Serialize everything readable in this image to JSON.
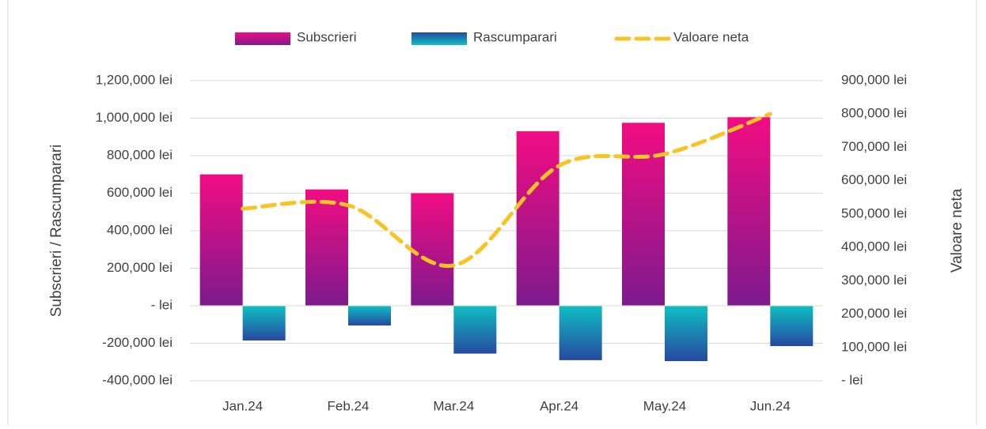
{
  "chart_data": {
    "type": "bar-line",
    "categories": [
      "Jan.24",
      "Feb.24",
      "Mar.24",
      "Apr.24",
      "May.24",
      "Jun.24"
    ],
    "y_label": "Subscrieri / Rascumparari",
    "y2_label": "Valoare neta",
    "ylim": [
      -400000,
      1200000
    ],
    "yticks": [
      {
        "value": -400000,
        "label": "-400,000 lei"
      },
      {
        "value": -200000,
        "label": "-200,000 lei"
      },
      {
        "value": 0,
        "label": "- lei"
      },
      {
        "value": 200000,
        "label": "200,000 lei"
      },
      {
        "value": 400000,
        "label": "400,000 lei"
      },
      {
        "value": 600000,
        "label": "600,000 lei"
      },
      {
        "value": 800000,
        "label": "800,000 lei"
      },
      {
        "value": 1000000,
        "label": "1,000,000 lei"
      },
      {
        "value": 1200000,
        "label": "1,200,000 lei"
      }
    ],
    "y2lim": [
      0,
      900000
    ],
    "y2ticks": [
      {
        "value": 0,
        "label": "- lei"
      },
      {
        "value": 100000,
        "label": "100,000 lei"
      },
      {
        "value": 200000,
        "label": "200,000 lei"
      },
      {
        "value": 300000,
        "label": "300,000 lei"
      },
      {
        "value": 400000,
        "label": "400,000 lei"
      },
      {
        "value": 500000,
        "label": "500,000 lei"
      },
      {
        "value": 600000,
        "label": "600,000 lei"
      },
      {
        "value": 700000,
        "label": "700,000 lei"
      },
      {
        "value": 800000,
        "label": "800,000 lei"
      },
      {
        "value": 900000,
        "label": "900,000 lei"
      }
    ],
    "grid": true,
    "legend": "top",
    "series": [
      {
        "name": "Subscrieri",
        "type": "bar",
        "colors": [
          "#f20c82",
          "#7d1a8d"
        ],
        "values": [
          700000,
          620000,
          600000,
          930000,
          975000,
          1005000
        ]
      },
      {
        "name": "Rascumparari",
        "type": "bar",
        "colors": [
          "#2648a0",
          "#0fbfc2"
        ],
        "values": [
          -185000,
          -105000,
          -255000,
          -290000,
          -295000,
          -215000
        ]
      },
      {
        "name": "Valoare neta",
        "type": "line",
        "axis": "y2",
        "colors": [
          "#f7c325"
        ],
        "values": [
          516000,
          526000,
          346000,
          645000,
          680000,
          800000
        ]
      }
    ]
  }
}
